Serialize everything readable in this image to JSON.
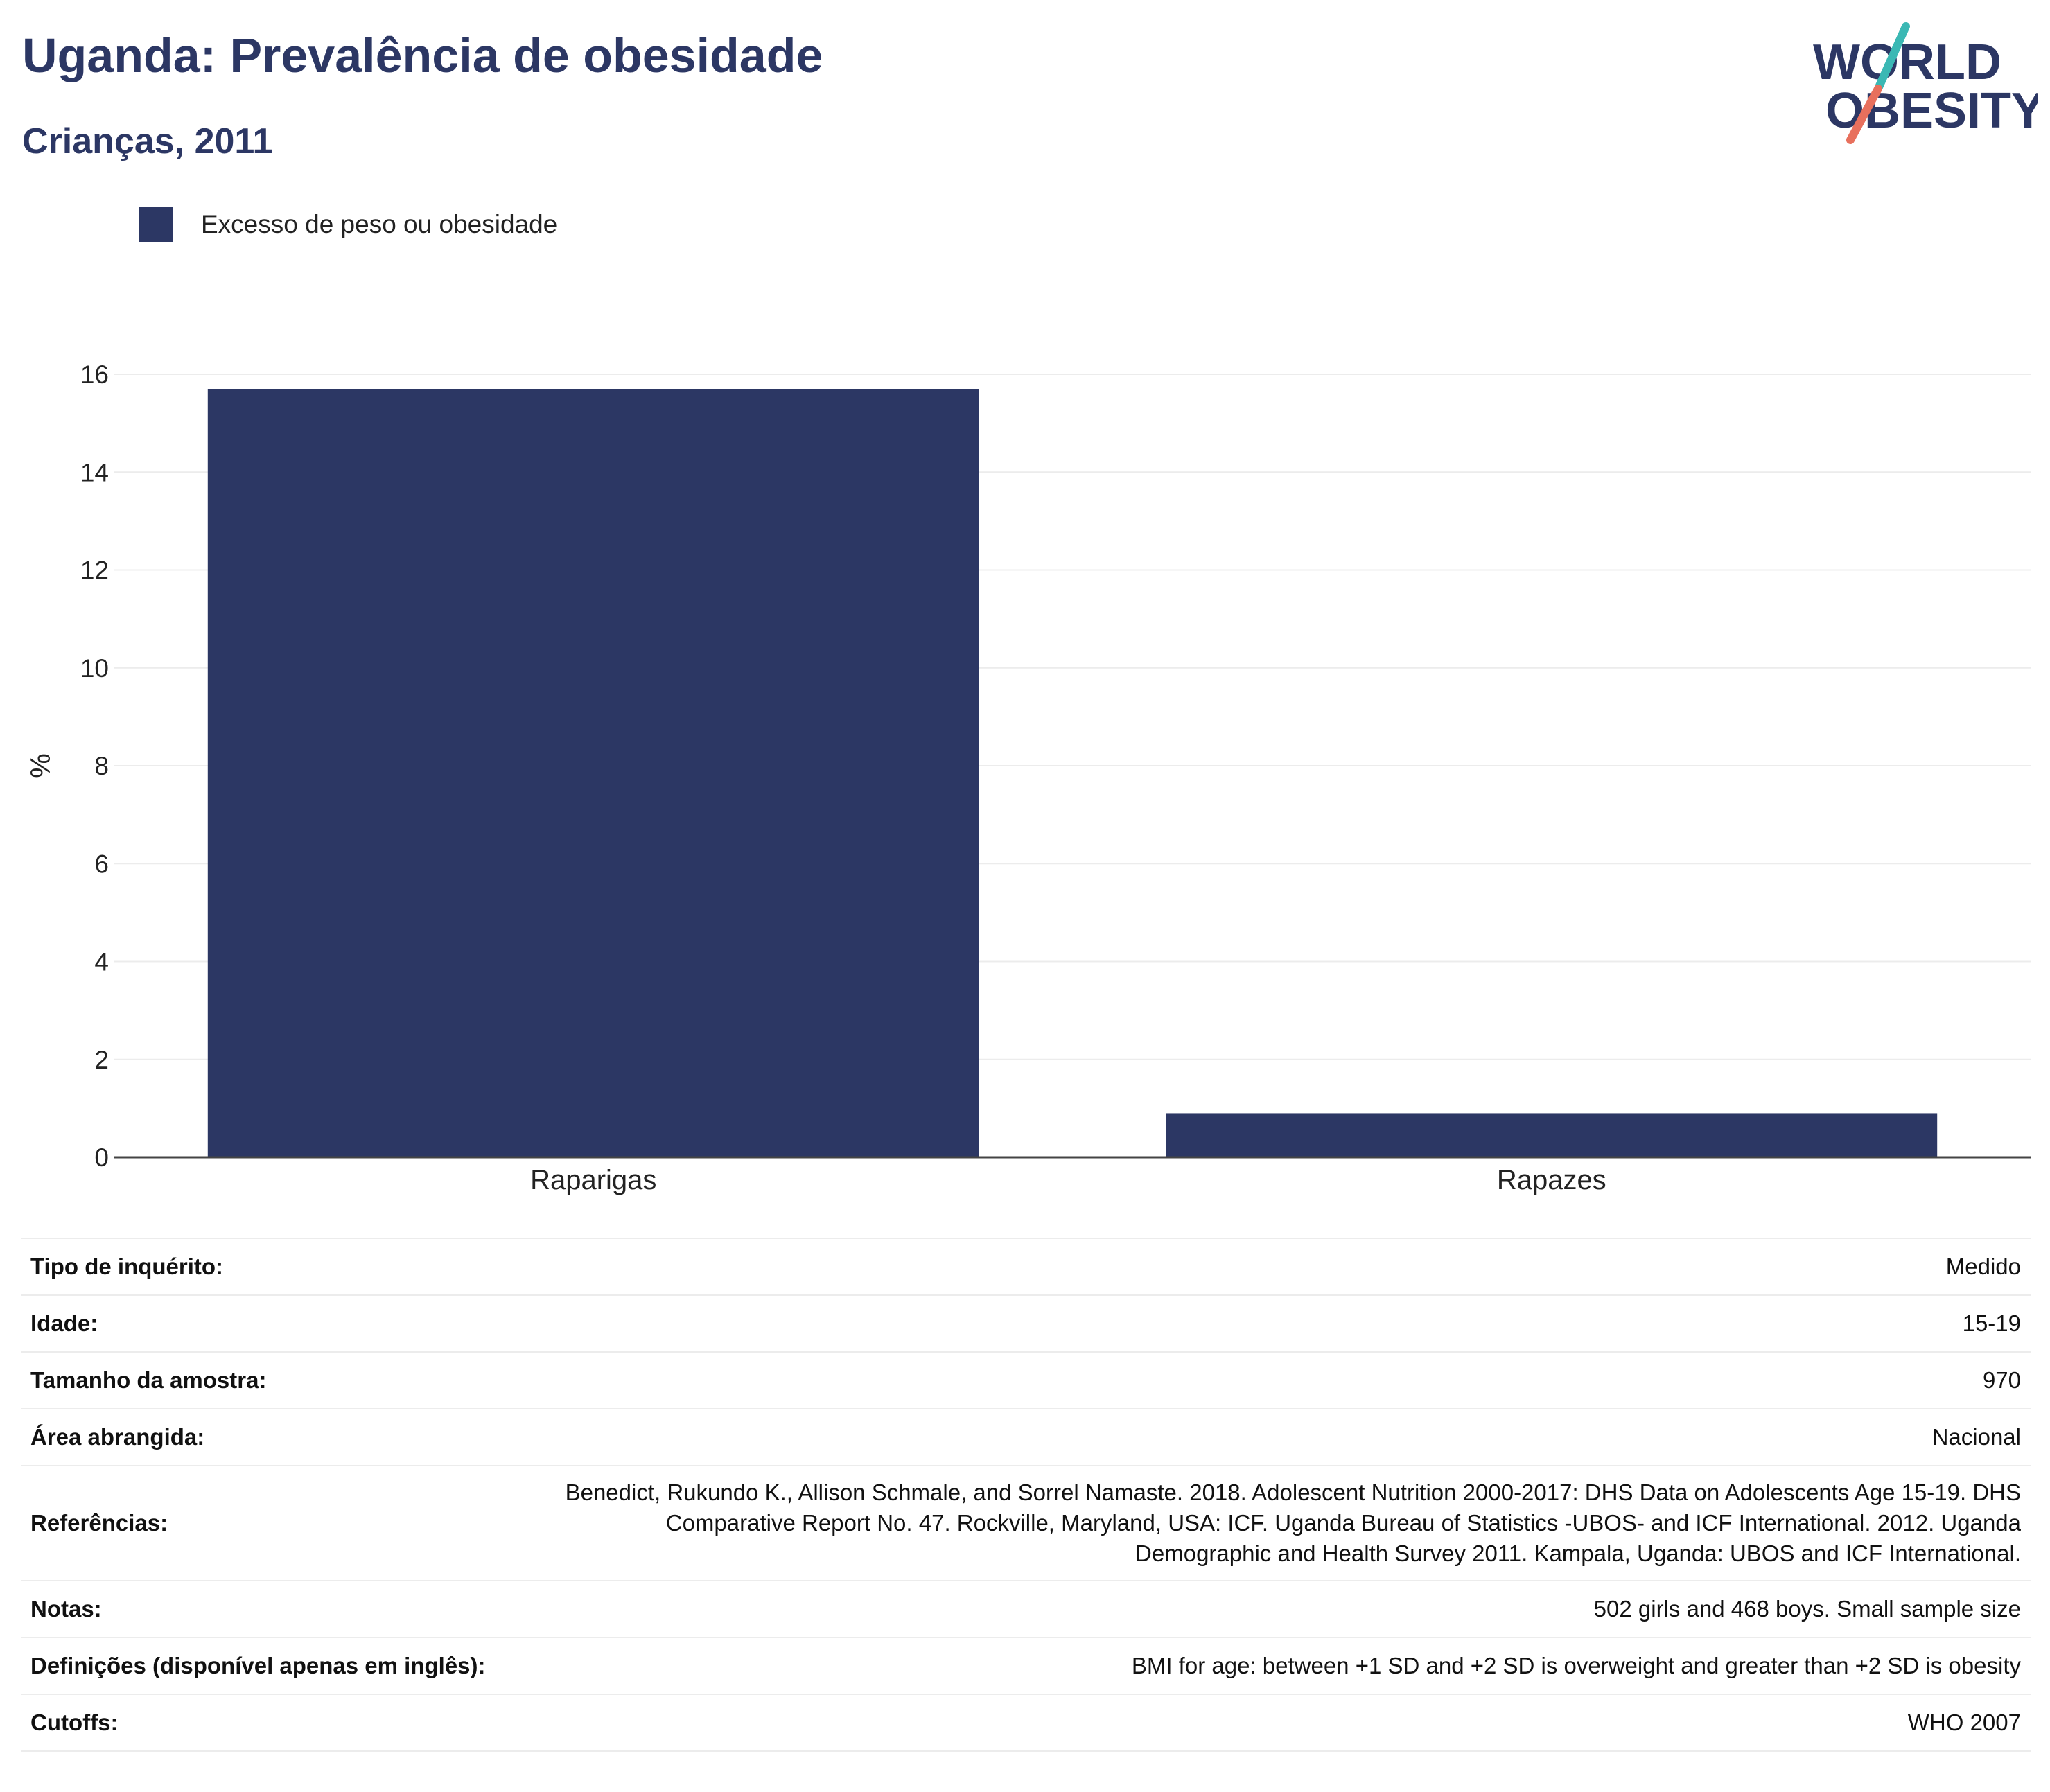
{
  "header": {
    "title": "Uganda: Prevalência de obesidade",
    "subtitle": "Crianças, 2011"
  },
  "logo": {
    "line1": "WORLD",
    "line2": "OBESITY"
  },
  "legend": {
    "label": "Excesso de peso ou obesidade",
    "color": "#2c3764"
  },
  "chart_data": {
    "type": "bar",
    "categories": [
      "Raparigas",
      "Rapazes"
    ],
    "series": [
      {
        "name": "Excesso de peso ou obesidade",
        "values": [
          15.7,
          0.9
        ]
      }
    ],
    "ylabel": "%",
    "xlabel": "",
    "ylim": [
      0,
      16
    ],
    "yticks": [
      0,
      2,
      4,
      6,
      8,
      10,
      12,
      14,
      16
    ],
    "grid": true,
    "legend_position": "top-left",
    "bar_color": "#2c3764"
  },
  "info": {
    "rows": [
      {
        "key": "Tipo de inquérito:",
        "value": "Medido"
      },
      {
        "key": "Idade:",
        "value": "15-19"
      },
      {
        "key": "Tamanho da amostra:",
        "value": "970"
      },
      {
        "key": "Área abrangida:",
        "value": "Nacional"
      },
      {
        "key": "Referências:",
        "value": "Benedict, Rukundo K., Allison Schmale, and Sorrel Namaste. 2018. Adolescent Nutrition 2000-2017: DHS Data on Adolescents Age 15-19. DHS Comparative Report No. 47. Rockville, Maryland, USA: ICF. Uganda Bureau of Statistics -UBOS- and ICF International. 2012. Uganda Demographic and Health Survey 2011. Kampala, Uganda: UBOS and ICF International."
      },
      {
        "key": "Notas:",
        "value": "502 girls and 468 boys. Small sample size"
      },
      {
        "key": "Definições (disponível apenas em inglês):",
        "value": "BMI for age: between +1 SD and +2 SD is overweight and greater than +2 SD is obesity"
      },
      {
        "key": "Cutoffs:",
        "value": "WHO 2007"
      }
    ]
  }
}
